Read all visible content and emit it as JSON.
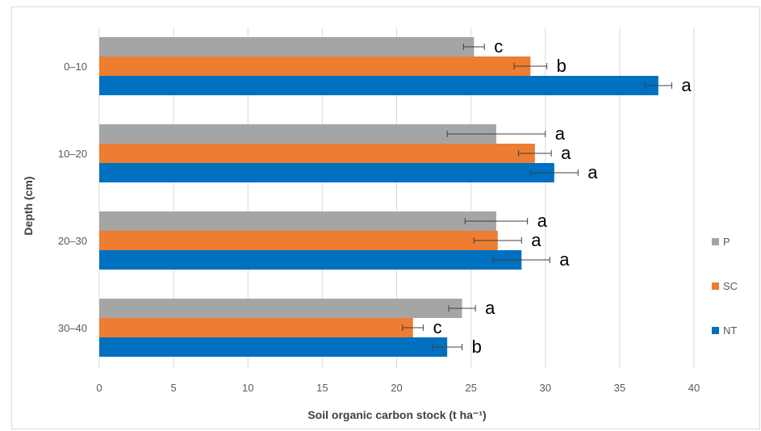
{
  "chart_data": {
    "type": "bar",
    "orientation": "horizontal",
    "title": "",
    "xlabel": "Soil organic carbon stock (t ha⁻¹)",
    "ylabel": "Depth (cm)",
    "xlim": [
      0,
      40
    ],
    "x_ticks": [
      0,
      5,
      10,
      15,
      20,
      25,
      30,
      35,
      40
    ],
    "categories": [
      "0–10",
      "10–20",
      "20–30",
      "30–40"
    ],
    "series": [
      {
        "name": "P",
        "color": "#a5a5a5",
        "values": [
          25.2,
          26.7,
          26.7,
          24.4
        ],
        "errors": [
          0.7,
          3.3,
          2.1,
          0.9
        ],
        "letters": [
          "c",
          "a",
          "a",
          "a"
        ]
      },
      {
        "name": "SC",
        "color": "#ed7d31",
        "values": [
          29.0,
          29.3,
          26.8,
          21.1
        ],
        "errors": [
          1.1,
          1.1,
          1.6,
          0.7
        ],
        "letters": [
          "b",
          "a",
          "a",
          "c"
        ]
      },
      {
        "name": "NT",
        "color": "#0070c0",
        "values": [
          37.6,
          30.6,
          28.4,
          23.4
        ],
        "errors": [
          0.9,
          1.6,
          1.9,
          1.0
        ],
        "letters": [
          "a",
          "a",
          "a",
          "b"
        ]
      }
    ],
    "grid": "vertical",
    "legend_position": "right"
  }
}
